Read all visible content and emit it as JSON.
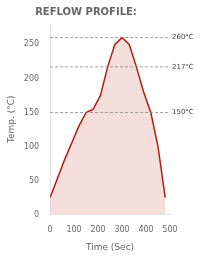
{
  "chart_data": {
    "type": "line",
    "title": "REFLOW PROFILE:",
    "x": [
      0,
      60,
      120,
      150,
      180,
      210,
      240,
      270,
      300,
      330,
      360,
      390,
      420,
      450,
      480
    ],
    "values": [
      25,
      80,
      130,
      150,
      155,
      175,
      217,
      250,
      260,
      250,
      217,
      180,
      150,
      100,
      25
    ],
    "color": "#b02010",
    "x_label": "Time (Sec)",
    "y_label": "Temp. (°C)",
    "xlim": [
      0,
      500
    ],
    "xticks": [
      0,
      100,
      200,
      300,
      400,
      500
    ],
    "ylim": [
      0,
      280
    ],
    "yticks": [
      0,
      50,
      100,
      150,
      200,
      250
    ],
    "annotations": [
      {
        "y": 150,
        "label": "150°C"
      },
      {
        "y": 217,
        "label": "217°C"
      },
      {
        "y": 260,
        "label": "260°C"
      }
    ],
    "grid": false
  }
}
